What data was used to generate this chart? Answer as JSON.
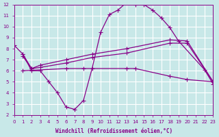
{
  "xlabel": "Windchill (Refroidissement éolien,°C)",
  "xlim": [
    0,
    23
  ],
  "ylim": [
    2,
    12
  ],
  "yticks": [
    2,
    3,
    4,
    5,
    6,
    7,
    8,
    9,
    10,
    11,
    12
  ],
  "xticks": [
    0,
    1,
    2,
    3,
    4,
    5,
    6,
    7,
    8,
    9,
    10,
    11,
    12,
    13,
    14,
    15,
    16,
    17,
    18,
    19,
    20,
    21,
    22,
    23
  ],
  "bg_color": "#c8e8e8",
  "grid_color": "#ffffff",
  "line_color": "#880088",
  "line1_x": [
    0,
    1,
    2,
    3,
    4,
    5,
    6,
    7,
    8,
    9,
    10,
    11,
    12,
    13,
    14,
    15,
    16,
    17,
    18,
    19,
    22,
    23
  ],
  "line1_y": [
    8.3,
    7.5,
    6.0,
    6.0,
    5.0,
    4.0,
    2.7,
    2.5,
    3.3,
    6.2,
    9.5,
    11.1,
    11.5,
    12.2,
    12.0,
    12.0,
    11.5,
    10.8,
    9.9,
    8.7,
    6.1,
    4.8
  ],
  "line2_x": [
    1,
    2,
    3,
    6,
    9,
    13,
    18,
    20,
    23
  ],
  "line2_y": [
    7.5,
    6.2,
    6.5,
    7.0,
    7.5,
    8.0,
    8.8,
    8.7,
    5.0
  ],
  "line3_x": [
    1,
    2,
    3,
    6,
    9,
    13,
    18,
    20,
    23
  ],
  "line3_y": [
    7.3,
    6.2,
    6.3,
    6.7,
    7.2,
    7.6,
    8.5,
    8.5,
    5.0
  ],
  "line4_x": [
    1,
    6,
    8,
    13,
    14,
    18,
    20,
    23
  ],
  "line4_y": [
    6.0,
    6.2,
    6.2,
    6.2,
    6.2,
    5.5,
    5.2,
    5.0
  ]
}
